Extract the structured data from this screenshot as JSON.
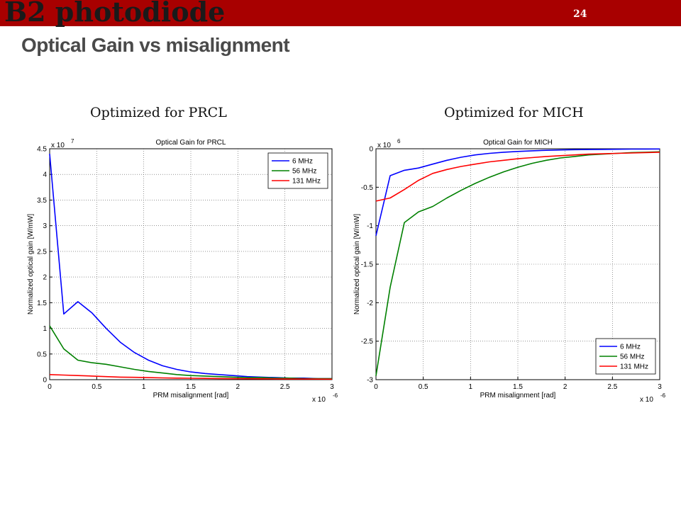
{
  "slide": {
    "title": "B2 photodiode",
    "subtitle": "Optical Gain vs misalignment",
    "page_number": "24",
    "accent_color": "#a80000"
  },
  "panels": [
    {
      "heading": "Optimized for PRCL"
    },
    {
      "heading": "Optimized for MICH"
    }
  ],
  "chart_data": [
    {
      "type": "line",
      "title": "Optical Gain for PRCL",
      "xlabel": "PRM misalignment [rad]",
      "ylabel": "Normalized optical gain [W/mW]",
      "x_multiplier": "x 10",
      "x_multiplier_exp": "-6",
      "y_multiplier": "x 10",
      "y_multiplier_exp": "7",
      "xlim": [
        0,
        3
      ],
      "ylim": [
        0,
        4.5
      ],
      "xticks": [
        0,
        0.5,
        1,
        1.5,
        2,
        2.5,
        3
      ],
      "xtick_labels": [
        "0",
        "0.5",
        "1",
        "1.5",
        "2",
        "2.5",
        "3"
      ],
      "yticks": [
        0,
        0.5,
        1,
        1.5,
        2,
        2.5,
        3,
        3.5,
        4,
        4.5
      ],
      "ytick_labels": [
        "0",
        "0.5",
        "1",
        "1.5",
        "2",
        "2.5",
        "3",
        "3.5",
        "4",
        "4.5"
      ],
      "grid": true,
      "legend_position": "top-right",
      "x": [
        0,
        0.15,
        0.3,
        0.45,
        0.6,
        0.75,
        0.9,
        1.05,
        1.2,
        1.35,
        1.5,
        1.65,
        1.8,
        1.95,
        2.1,
        2.25,
        2.4,
        2.55,
        2.7,
        2.85,
        3.0
      ],
      "series": [
        {
          "name": "6 MHz",
          "color": "#0000ff",
          "values": [
            4.4,
            1.28,
            1.52,
            1.3,
            1.0,
            0.73,
            0.53,
            0.38,
            0.27,
            0.2,
            0.15,
            0.12,
            0.1,
            0.08,
            0.06,
            0.05,
            0.04,
            0.03,
            0.03,
            0.02,
            0.02
          ]
        },
        {
          "name": "56 MHz",
          "color": "#008000",
          "values": [
            1.05,
            0.6,
            0.38,
            0.33,
            0.3,
            0.25,
            0.2,
            0.16,
            0.13,
            0.1,
            0.08,
            0.07,
            0.06,
            0.05,
            0.04,
            0.04,
            0.03,
            0.03,
            0.02,
            0.02,
            0.02
          ]
        },
        {
          "name": "131 MHz",
          "color": "#ff0000",
          "values": [
            0.1,
            0.09,
            0.08,
            0.07,
            0.06,
            0.05,
            0.045,
            0.04,
            0.035,
            0.03,
            0.028,
            0.025,
            0.022,
            0.02,
            0.018,
            0.016,
            0.015,
            0.013,
            0.012,
            0.011,
            0.01
          ]
        }
      ]
    },
    {
      "type": "line",
      "title": "Optical Gain for MICH",
      "xlabel": "PRM misalignment [rad]",
      "ylabel": "Normalized optical gain [W/mW]",
      "x_multiplier": "x 10",
      "x_multiplier_exp": "-6",
      "y_multiplier": "x 10",
      "y_multiplier_exp": "6",
      "xlim": [
        0,
        3
      ],
      "ylim": [
        -3,
        0
      ],
      "xticks": [
        0,
        0.5,
        1,
        1.5,
        2,
        2.5,
        3
      ],
      "xtick_labels": [
        "0",
        "0.5",
        "1",
        "1.5",
        "2",
        "2.5",
        "3"
      ],
      "yticks": [
        -3,
        -2.5,
        -2,
        -1.5,
        -1,
        -0.5,
        0
      ],
      "ytick_labels": [
        "-3",
        "-2.5",
        "-2",
        "-1.5",
        "-1",
        "-0.5",
        "0"
      ],
      "grid": true,
      "legend_position": "bottom-right",
      "x": [
        0,
        0.15,
        0.3,
        0.45,
        0.6,
        0.75,
        0.9,
        1.05,
        1.2,
        1.35,
        1.5,
        1.65,
        1.8,
        1.95,
        2.1,
        2.25,
        2.4,
        2.55,
        2.7,
        2.85,
        3.0
      ],
      "series": [
        {
          "name": "6 MHz",
          "color": "#0000ff",
          "values": [
            -1.13,
            -0.35,
            -0.28,
            -0.25,
            -0.2,
            -0.15,
            -0.11,
            -0.08,
            -0.06,
            -0.045,
            -0.035,
            -0.027,
            -0.02,
            -0.016,
            -0.012,
            -0.01,
            -0.008,
            -0.006,
            -0.005,
            -0.004,
            -0.003
          ]
        },
        {
          "name": "56 MHz",
          "color": "#008000",
          "values": [
            -2.95,
            -1.8,
            -0.96,
            -0.82,
            -0.75,
            -0.64,
            -0.54,
            -0.45,
            -0.37,
            -0.3,
            -0.24,
            -0.19,
            -0.15,
            -0.12,
            -0.1,
            -0.08,
            -0.07,
            -0.06,
            -0.05,
            -0.045,
            -0.04
          ]
        },
        {
          "name": "131 MHz",
          "color": "#ff0000",
          "values": [
            -0.68,
            -0.64,
            -0.53,
            -0.41,
            -0.32,
            -0.27,
            -0.23,
            -0.2,
            -0.17,
            -0.15,
            -0.13,
            -0.115,
            -0.1,
            -0.09,
            -0.08,
            -0.07,
            -0.065,
            -0.06,
            -0.055,
            -0.05,
            -0.045
          ]
        }
      ]
    }
  ]
}
